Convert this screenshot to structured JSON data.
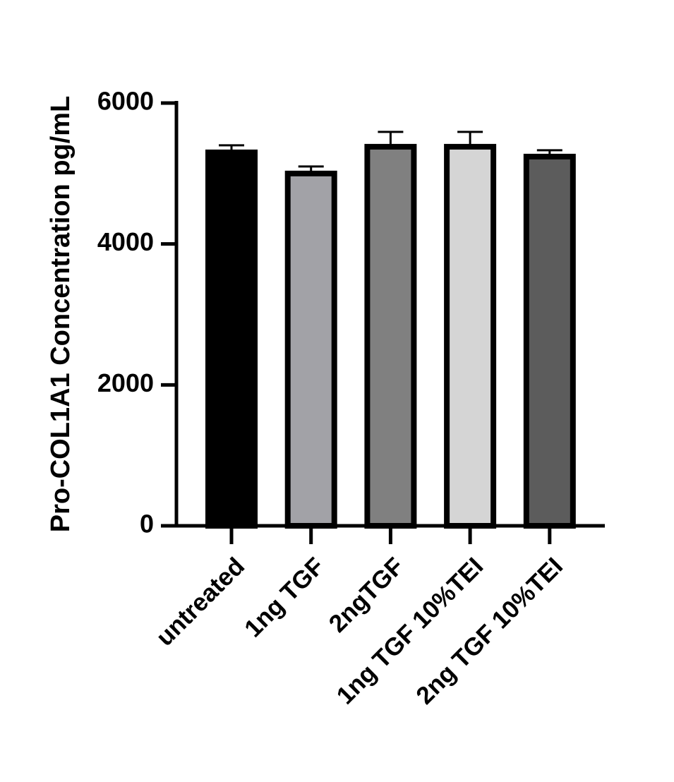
{
  "chart_data": {
    "type": "bar",
    "y_label": "Pro-COL1A1 Concentration pg/mL",
    "categories": [
      "untreated",
      "1ng TGF",
      "2ngTGF",
      "1ng TGF 10%TEI",
      "2ng TGF 10%TEI"
    ],
    "values": [
      5340,
      5040,
      5420,
      5420,
      5280
    ],
    "errors": [
      60,
      60,
      170,
      170,
      50
    ],
    "colors": [
      "#000000",
      "#a2a2a7",
      "#808080",
      "#d5d5d5",
      "#5c5c5c"
    ],
    "ylim": [
      0,
      6000
    ],
    "yticks": [
      0,
      2000,
      4000,
      6000
    ],
    "grid": false
  }
}
